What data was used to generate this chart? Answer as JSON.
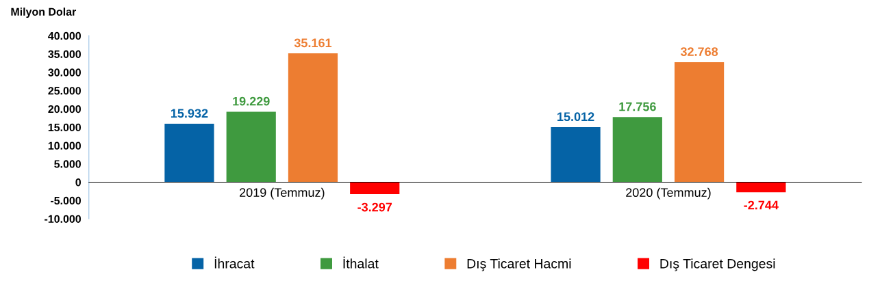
{
  "chart_data": {
    "type": "bar",
    "ylabel": "Milyon Dolar",
    "categories": [
      "2019 (Temmuz)",
      "2020 (Temmuz)"
    ],
    "series": [
      {
        "name": "İhracat",
        "color": "#0563a6",
        "values": [
          15932,
          15012
        ],
        "value_labels": [
          "15.932",
          "15.012"
        ]
      },
      {
        "name": "İthalat",
        "color": "#3f9a3f",
        "values": [
          19229,
          17756
        ],
        "value_labels": [
          "19.229",
          "17.756"
        ]
      },
      {
        "name": "Dış Ticaret Hacmi",
        "color": "#ed7d31",
        "values": [
          35161,
          32768
        ],
        "value_labels": [
          "35.161",
          "32.768"
        ]
      },
      {
        "name": "Dış Ticaret Dengesi",
        "color": "#ff0000",
        "values": [
          -3297,
          -2744
        ],
        "value_labels": [
          "-3.297",
          "-2.744"
        ]
      }
    ],
    "ylim": [
      -10000,
      40000
    ],
    "yticks": [
      {
        "value": -10000,
        "label": "-10.000"
      },
      {
        "value": -5000,
        "label": "-5.000"
      },
      0,
      {
        "value": 5000,
        "label": "5.000"
      },
      {
        "value": 10000,
        "label": "10.000"
      },
      {
        "value": 15000,
        "label": "15.000"
      },
      {
        "value": 20000,
        "label": "20.000"
      },
      {
        "value": 25000,
        "label": "25.000"
      },
      {
        "value": 30000,
        "label": "30.000"
      },
      {
        "value": 35000,
        "label": "35.000"
      },
      {
        "value": 40000,
        "label": "40.000"
      }
    ],
    "grid": false,
    "legend": "bottom"
  }
}
